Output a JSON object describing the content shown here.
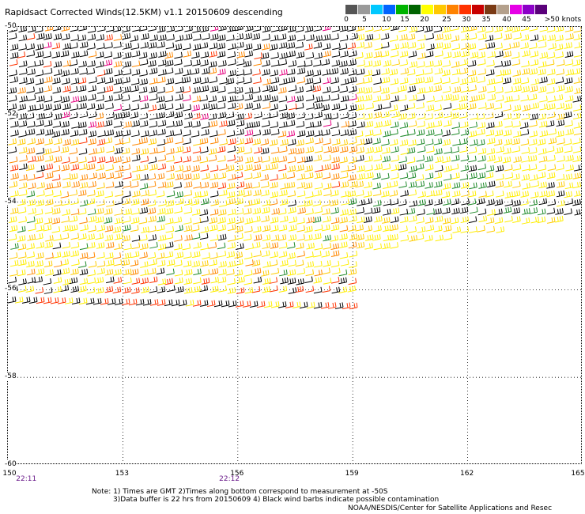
{
  "title": "Rapidsact Corrected Winds(12.5KM) v1.1 20150609 descending",
  "legend": {
    "colors": [
      "#555555",
      "#9a9a9a",
      "#00c8ff",
      "#0064ff",
      "#00b400",
      "#006400",
      "#ffff00",
      "#ffc800",
      "#ff8200",
      "#ff3200",
      "#c80000",
      "#7a3a14",
      "#b4a08c",
      "#e600e6",
      "#8c00c8",
      "#5a007a"
    ],
    "labels": [
      "0",
      "5",
      "10",
      "15",
      "20",
      "25",
      "30",
      "35",
      "40",
      "45",
      ">50 knots"
    ]
  },
  "axes": {
    "x_ticks": [
      "150",
      "153",
      "156",
      "159",
      "162",
      "165"
    ],
    "y_ticks": [
      "-50",
      "-52",
      "-54",
      "-56",
      "-58",
      "-60"
    ]
  },
  "times": [
    {
      "label": "22:11",
      "lon": 150.5
    },
    {
      "label": "22:12",
      "lon": 155.8
    }
  ],
  "notes": {
    "line1": "Note: 1) Times are GMT 2)Times along bottom correspond to measurement at -50S",
    "line2": "3)Data buffer is 22 hrs from 20150609 4) Black wind barbs indicate possible contamination",
    "credit": "NOAA/NESDIS/Center for Satellite Applications and Resec"
  },
  "wind_palette": {
    "contaminated": "#000000",
    "lt20": "#1f8a2a",
    "w20_25": "#ffee00",
    "w25_30": "#ffcc00",
    "w30_35": "#ff8800",
    "w35_40": "#ff3300",
    "gt40": "#e60080",
    "low": "#00b400"
  }
}
